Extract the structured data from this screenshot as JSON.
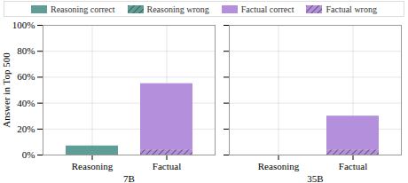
{
  "chart_data": {
    "type": "bar",
    "stacked": true,
    "legend": "top",
    "grid": true,
    "y_label": "Answer in Top 500",
    "facets": [
      "7B",
      "35B"
    ],
    "categories": [
      "Reasoning",
      "Factual"
    ],
    "series": [
      {
        "name": "Reasoning correct",
        "color": "#5f9e97",
        "line_style": "solid",
        "values": [
          [
            7,
            null
          ],
          [
            0,
            null
          ]
        ]
      },
      {
        "name": "Reasoning wrong",
        "color": "#5f9e97",
        "line_style": "hatched",
        "values": [
          [
            0,
            null
          ],
          [
            0,
            null
          ]
        ]
      },
      {
        "name": "Factual correct",
        "color": "#b48fdc",
        "line_style": "solid",
        "values": [
          [
            null,
            51
          ],
          [
            null,
            26
          ]
        ]
      },
      {
        "name": "Factual wrong",
        "color": "#b48fdc",
        "line_style": "hatched",
        "values": [
          [
            null,
            4
          ],
          [
            null,
            4
          ]
        ]
      }
    ],
    "ylim": [
      0,
      100
    ],
    "yticks": [
      {
        "value": 0,
        "label": "0%"
      },
      {
        "value": 20,
        "label": "20%"
      },
      {
        "value": 40,
        "label": "40%"
      },
      {
        "value": 60,
        "label": "60%"
      },
      {
        "value": 80,
        "label": "80%"
      },
      {
        "value": 100,
        "label": "100%"
      }
    ]
  }
}
